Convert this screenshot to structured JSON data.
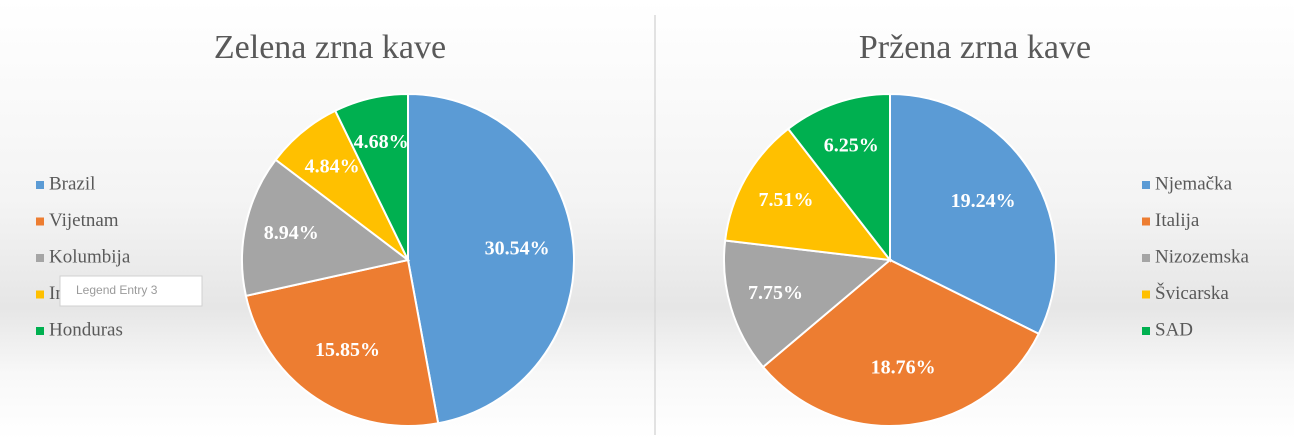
{
  "chart_data": [
    {
      "type": "pie",
      "title": "Zelena zrna kave",
      "categories": [
        "Brazil",
        "Vijetnam",
        "Kolumbija",
        "Indonezija",
        "Honduras"
      ],
      "values": [
        30.54,
        15.85,
        8.94,
        4.84,
        4.68
      ],
      "value_labels": [
        "30.54%",
        "15.85%",
        "8.94%",
        "4.84%",
        "4.68%"
      ],
      "colors": [
        "#5b9bd5",
        "#ed7d31",
        "#a5a5a5",
        "#ffc000",
        "#00b050"
      ],
      "legend": "left"
    },
    {
      "type": "pie",
      "title": "Pržena zrna kave",
      "categories": [
        "Njemačka",
        "Italija",
        "Nizozemska",
        "Švicarska",
        "SAD"
      ],
      "values": [
        19.24,
        18.76,
        7.75,
        7.51,
        6.25
      ],
      "value_labels": [
        "19.24%",
        "18.76%",
        "7.75%",
        "7.51%",
        "6.25%"
      ],
      "colors": [
        "#5b9bd5",
        "#ed7d31",
        "#a5a5a5",
        "#ffc000",
        "#00b050"
      ],
      "legend": "right"
    }
  ],
  "tooltip": "Legend Entry 3"
}
